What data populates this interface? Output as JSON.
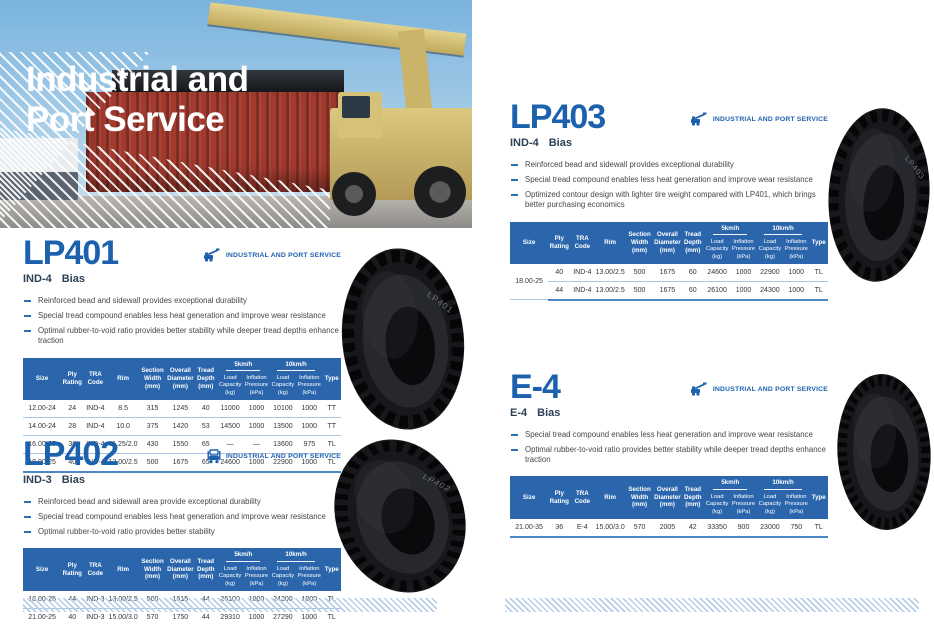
{
  "hero": {
    "title_line1": "Industrial and",
    "title_line2": "Port Service"
  },
  "badge_label": "INDUSTRIAL AND PORT SERVICE",
  "colors": {
    "accent_blue": "#1c61ae",
    "table_header_blue": "#2b66ad",
    "row_divider_blue": "#a9c6e6",
    "hatch_blue": "#b7cde8"
  },
  "table_headers": {
    "static": [
      "Size",
      "Ply\nRating",
      "TRA\nCode",
      "Rim",
      "Section\nWidth\n(mm)",
      "Overall\nDiameter\n(mm)",
      "Tread\nDepth\n(mm)"
    ],
    "speed_groups": [
      {
        "label": "5km/h",
        "columns": [
          "Load\nCapacity\n(kg)",
          "Inflation\nPressure\n(kPa)"
        ]
      },
      {
        "label": "10km/h",
        "columns": [
          "Load\nCapacity\n(kg)",
          "Inflation\nPressure\n(kPa)"
        ]
      }
    ],
    "type": "Type"
  },
  "products": [
    {
      "code": "LP401",
      "category": "IND-4",
      "construction": "Bias",
      "icon": "reachstacker-icon",
      "tire_label": "LP401",
      "bullets": [
        "Reinforced bead and sidewall provides exceptional durability",
        "Special tread compound enables less heat generation and improve wear resistance",
        "Optimal rubber-to-void ratio provides better stability while deeper tread depths enhance traction"
      ],
      "table_rows": [
        [
          "12.00-24",
          "24",
          "IND-4",
          "8.5",
          "315",
          "1245",
          "40",
          "11000",
          "1000",
          "10100",
          "1000",
          "TT"
        ],
        [
          "14.00-24",
          "28",
          "IND-4",
          "10.0",
          "375",
          "1420",
          "53",
          "14500",
          "1000",
          "13500",
          "1000",
          "TT"
        ],
        [
          "16.00-25",
          "36",
          "IND-4",
          "11.25/2.0",
          "430",
          "1550",
          "65",
          "—",
          "—",
          "13600",
          "975",
          "TL"
        ],
        [
          "18.00-25",
          "40",
          "IND-4",
          "13.00/2.5",
          "500",
          "1675",
          "65",
          "24600",
          "1000",
          "22900",
          "1000",
          "TL"
        ]
      ]
    },
    {
      "code": "LP402",
      "category": "IND-3",
      "construction": "Bias",
      "icon": "forklift-icon",
      "tire_label": "LP402",
      "bullets": [
        "Reinforced bead and sidewall area provide exceptional durability",
        "Special tread compound enables less heat generation and improve wear resistance",
        "Optimal rubber-to-void ratio provides better stability"
      ],
      "table_rows": [
        [
          "18.00-25",
          "44",
          "IND-3",
          "13.00/2.5",
          "500",
          "1615",
          "44",
          "26100",
          "1000",
          "24300",
          "1000",
          "TL"
        ],
        [
          "21.00-25",
          "40",
          "IND-3",
          "15.00/3.0",
          "570",
          "1750",
          "44",
          "29310",
          "1000",
          "27290",
          "1000",
          "TL"
        ]
      ]
    },
    {
      "code": "LP403",
      "category": "IND-4",
      "construction": "Bias",
      "icon": "reachstacker-icon",
      "tire_label": "LP403",
      "bullets": [
        "Reinforced bead and sidewall provides exceptional durability",
        "Special tread compound enables less heat generation and improve wear resistance",
        "Optimized contour design with lighter tire weight compared with LP401, which brings better purchasing economics"
      ],
      "table_rows": [
        [
          "18.00-25",
          "40",
          "IND-4",
          "13.00/2.5",
          "500",
          "1675",
          "60",
          "24600",
          "1000",
          "22900",
          "1000",
          "TL"
        ],
        [
          null,
          "44",
          "IND-4",
          "13.00/2.5",
          "500",
          "1675",
          "60",
          "26100",
          "1000",
          "24300",
          "1000",
          "TL"
        ]
      ]
    },
    {
      "code": "E-4",
      "category": "E-4",
      "construction": "Bias",
      "icon": "reachstacker-icon",
      "tire_label": "",
      "bullets": [
        "Special tread compound enables less heat generation and improve wear resistance",
        "Optimal rubber-to-void ratio provides better stability while deeper tread depths enhance traction"
      ],
      "table_rows": [
        [
          "21.00-35",
          "36",
          "E-4",
          "15.00/3.0",
          "570",
          "2005",
          "42",
          "33350",
          "900",
          "23000",
          "750",
          "TL"
        ]
      ]
    }
  ]
}
